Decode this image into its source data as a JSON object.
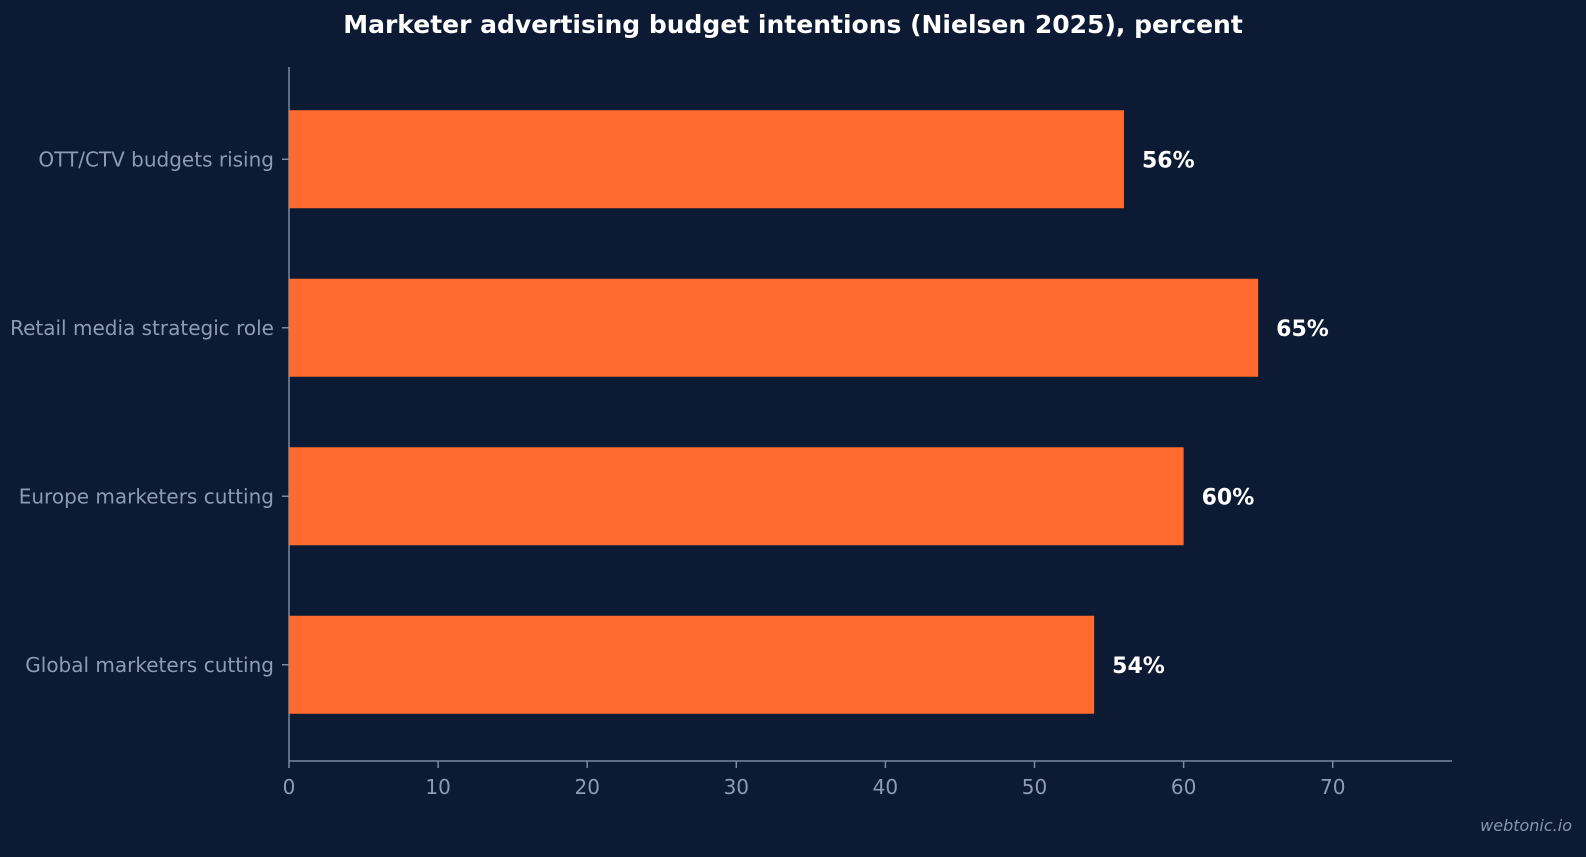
{
  "chart_data": {
    "type": "bar",
    "orientation": "horizontal",
    "title": "Marketer advertising budget intentions (Nielsen 2025), percent",
    "categories": [
      "OTT/CTV budgets rising",
      "Retail media strategic role",
      "Europe marketers cutting",
      "Global marketers cutting"
    ],
    "values": [
      56,
      65,
      60,
      54
    ],
    "value_labels": [
      "56%",
      "65%",
      "60%",
      "54%"
    ],
    "xlabel": "",
    "ylabel": "",
    "xlim": [
      0,
      78
    ],
    "xticks": [
      0,
      10,
      20,
      30,
      40,
      50,
      60,
      70
    ],
    "grid": false,
    "legend": "none"
  },
  "colors": {
    "background": "#0c1a33",
    "bar": "#ff6b2e",
    "axis": "#7d8aa0",
    "tick_label": "#8f9bb0",
    "value_label": "#ffffff",
    "title": "#ffffff"
  },
  "watermark": "webtonic.io"
}
